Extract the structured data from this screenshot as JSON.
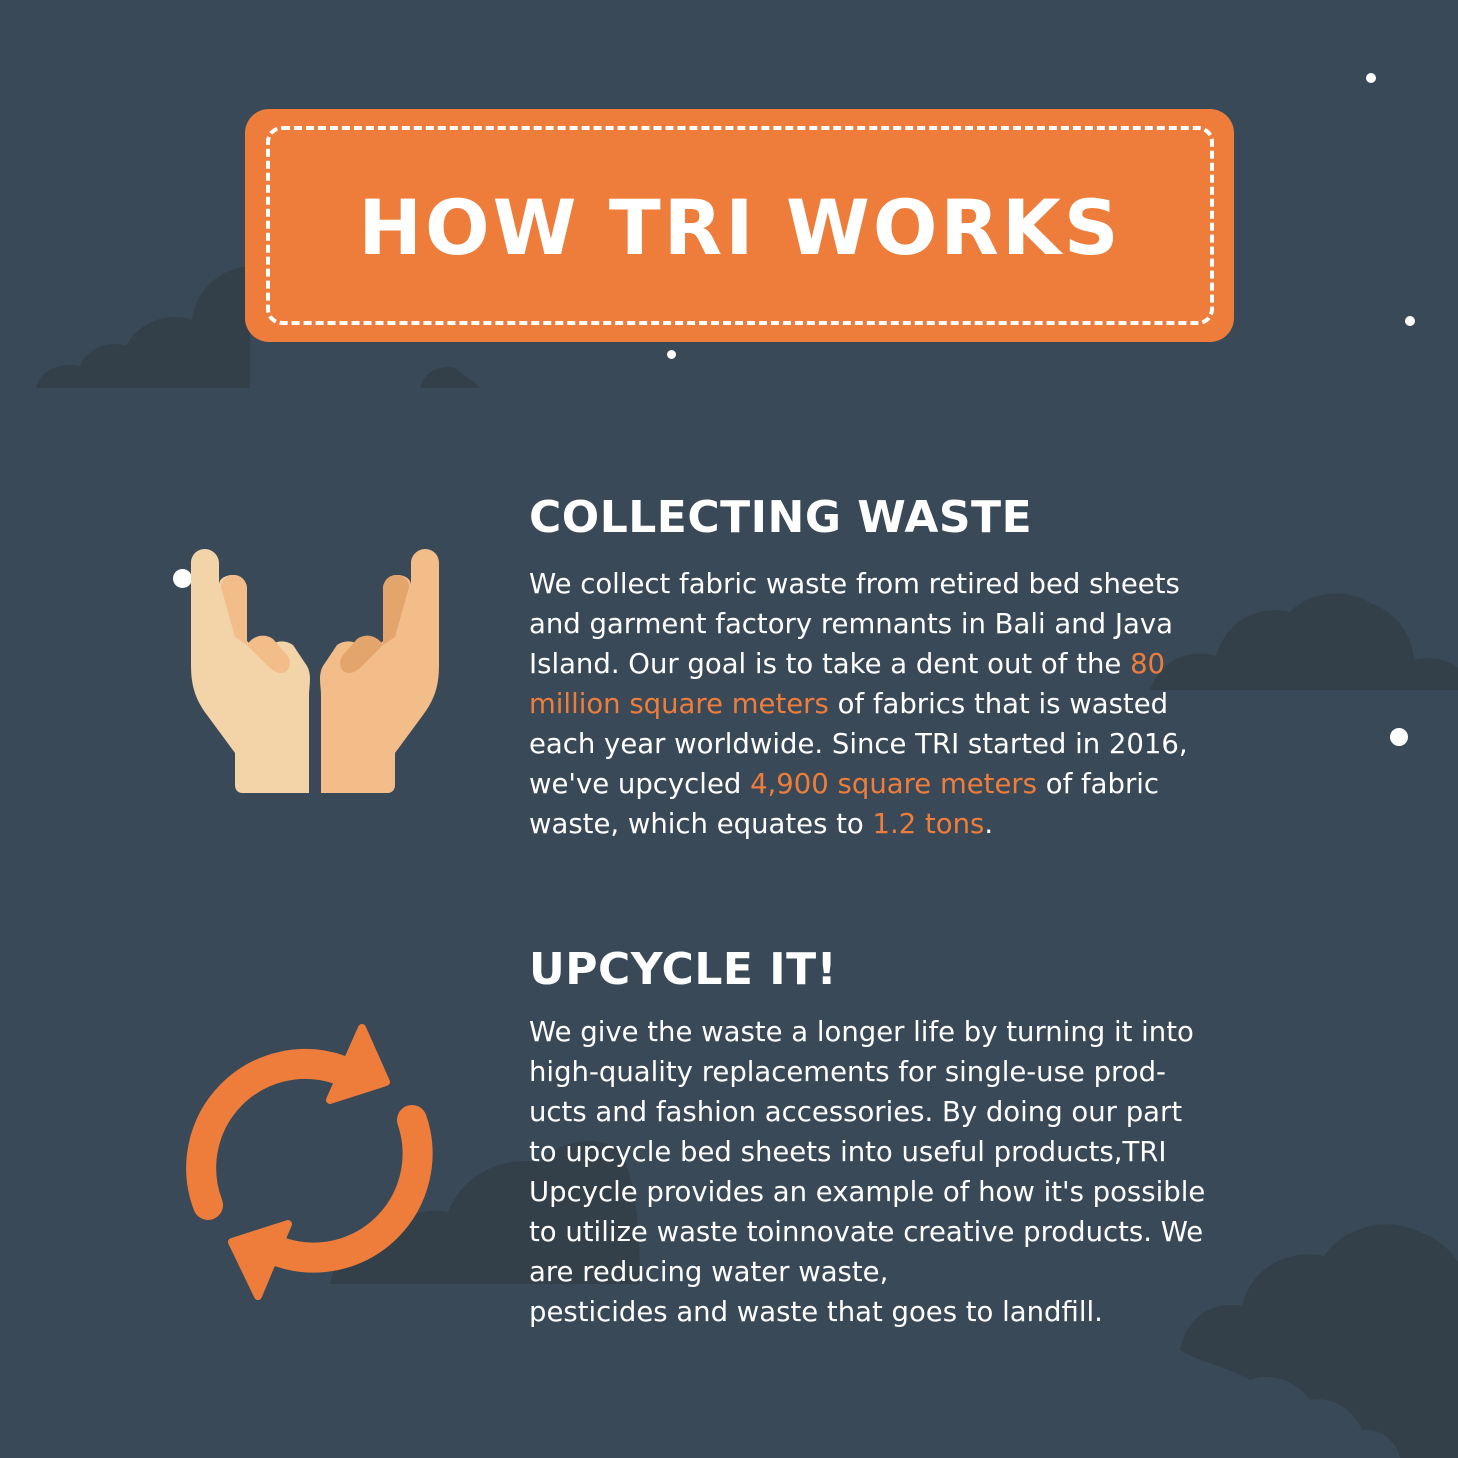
{
  "title": "HOW TRI WORKS",
  "sections": [
    {
      "heading": "COLLECTING WASTE",
      "icon": "open-hands-icon",
      "lines": [
        [
          {
            "t": "We collect fabric waste from retired bed sheets"
          }
        ],
        [
          {
            "t": "and garment factory remnants in Bali and Java"
          }
        ],
        [
          {
            "t": "Island. Our goal is to take a dent out of the "
          },
          {
            "t": "80",
            "hl": true
          }
        ],
        [
          {
            "t": "million square meters",
            "hl": true
          },
          {
            "t": " of fabrics that is wasted"
          }
        ],
        [
          {
            "t": "each year worldwide. Since TRI started in 2016,"
          }
        ],
        [
          {
            "t": "we've upcycled "
          },
          {
            "t": "4,900 square meters",
            "hl": true
          },
          {
            "t": " of fabric"
          }
        ],
        [
          {
            "t": "waste, which equates to "
          },
          {
            "t": "1.2 tons",
            "hl": true
          },
          {
            "t": "."
          }
        ]
      ]
    },
    {
      "heading": "UPCYCLE IT!",
      "icon": "recycle-arrows-icon",
      "lines": [
        [
          {
            "t": "We give the waste a longer life by turning it into"
          }
        ],
        [
          {
            "t": "high-quality replacements for single-use prod-"
          }
        ],
        [
          {
            "t": "ucts and fashion accessories. By doing our part"
          }
        ],
        [
          {
            "t": "to upcycle bed sheets into useful products,TRI"
          }
        ],
        [
          {
            "t": "Upcycle provides an example of how it's possible"
          }
        ],
        [
          {
            "t": "to utilize waste toinnovate creative products. We"
          }
        ],
        [
          {
            "t": "are reducing water waste,"
          }
        ],
        [
          {
            "t": "pesticides and waste that goes to landfill."
          }
        ]
      ]
    }
  ],
  "colors": {
    "background": "#3a4957",
    "accent": "#ee7d3b",
    "text": "#ffffff",
    "cloud": "#334049"
  }
}
